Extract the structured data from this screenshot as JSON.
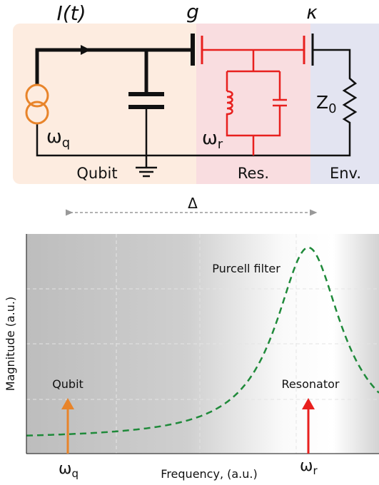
{
  "circuit": {
    "current": "I(t)",
    "coupling": "g",
    "decay": "κ",
    "qubit_freq": {
      "symbol": "ω",
      "subscript": "q"
    },
    "impedance": {
      "symbol": "Z",
      "subscript": "0"
    },
    "res_freq": {
      "symbol": "ω",
      "subscript": "r"
    },
    "regions": [
      "Qubit",
      "Res.",
      "Env."
    ]
  },
  "detuning": "Δ",
  "plot": {
    "curve_label": "Purcell filter",
    "markers": [
      {
        "label": "Qubit",
        "tick": {
          "symbol": "ω",
          "subscript": "q"
        }
      },
      {
        "label": "Resonator",
        "tick": {
          "symbol": "ω",
          "subscript": "r"
        }
      }
    ],
    "x_label": "Frequency, (a.u.)",
    "y_label": "Magnitude (a.u.)"
  }
}
